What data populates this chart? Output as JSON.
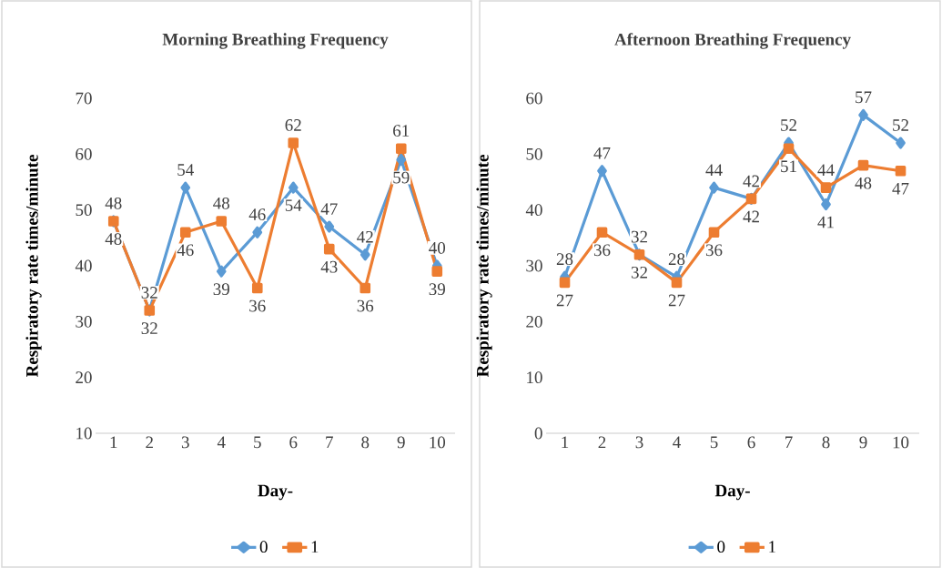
{
  "chart_data": [
    {
      "type": "line",
      "title": "Morning Breathing Frequency",
      "xlabel": "Day-",
      "ylabel": "Respiratory rate times/minute",
      "categories": [
        "1",
        "2",
        "3",
        "4",
        "5",
        "6",
        "7",
        "8",
        "9",
        "10"
      ],
      "series": [
        {
          "name": "0",
          "color": "#5b9bd5",
          "marker": "diamond",
          "values": [
            48,
            32,
            54,
            39,
            46,
            54,
            47,
            42,
            59,
            40
          ]
        },
        {
          "name": "1",
          "color": "#ed7d31",
          "marker": "square",
          "values": [
            48,
            32,
            46,
            48,
            36,
            62,
            43,
            36,
            61,
            39
          ]
        }
      ],
      "ylim": [
        10,
        70
      ],
      "yticks": [
        10,
        20,
        30,
        40,
        50,
        60,
        70
      ],
      "data_labels": true,
      "legend": "bottom",
      "grid": false
    },
    {
      "type": "line",
      "title": "Afternoon Breathing Frequency",
      "xlabel": "Day-",
      "ylabel": "Respiratory rate times/minute",
      "categories": [
        "1",
        "2",
        "3",
        "4",
        "5",
        "6",
        "7",
        "8",
        "9",
        "10"
      ],
      "series": [
        {
          "name": "0",
          "color": "#5b9bd5",
          "marker": "diamond",
          "values": [
            28,
            47,
            32,
            28,
            44,
            42,
            52,
            41,
            57,
            52
          ]
        },
        {
          "name": "1",
          "color": "#ed7d31",
          "marker": "square",
          "values": [
            27,
            36,
            32,
            27,
            36,
            42,
            51,
            44,
            48,
            47
          ]
        }
      ],
      "ylim": [
        0,
        60
      ],
      "yticks": [
        0,
        10,
        20,
        30,
        40,
        50,
        60
      ],
      "data_labels": true,
      "legend": "bottom",
      "grid": false
    }
  ]
}
